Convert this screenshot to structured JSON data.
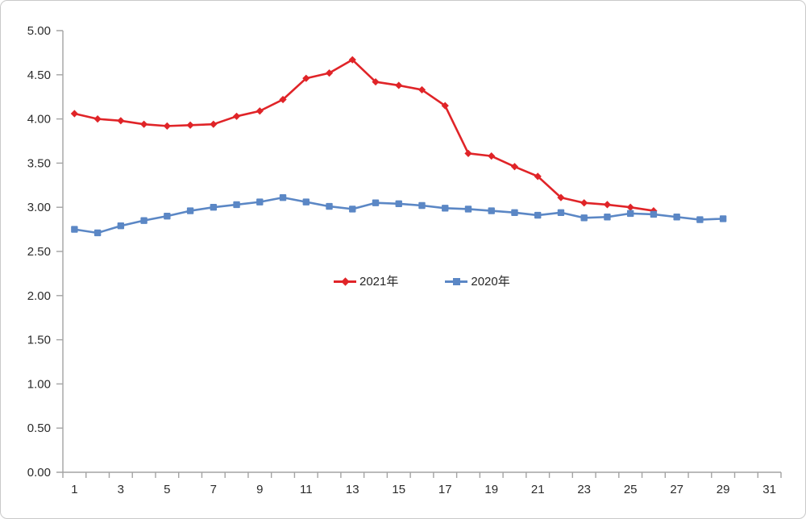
{
  "chart_data": {
    "type": "line",
    "title": "",
    "xlabel": "",
    "ylabel": "",
    "x_start": 1,
    "x_max": 31,
    "x_tick_labels": [
      1,
      3,
      5,
      7,
      9,
      11,
      13,
      15,
      17,
      19,
      21,
      23,
      25,
      27,
      29,
      31
    ],
    "ylim": [
      0,
      5
    ],
    "y_tick_step": 0.5,
    "y_tick_decimals": 2,
    "grid": false,
    "legend_position": "center-inside",
    "series": [
      {
        "name": "2021年",
        "color": "#e02428",
        "marker": "diamond",
        "x": [
          1,
          2,
          3,
          4,
          5,
          6,
          7,
          8,
          9,
          10,
          11,
          12,
          13,
          14,
          15,
          16,
          17,
          18,
          19,
          20,
          21,
          22,
          23,
          24,
          25,
          26
        ],
        "values": [
          4.06,
          4.0,
          3.98,
          3.94,
          3.92,
          3.93,
          3.94,
          4.03,
          4.09,
          4.22,
          4.46,
          4.52,
          4.67,
          4.42,
          4.38,
          4.33,
          4.15,
          3.61,
          3.58,
          3.46,
          3.35,
          3.11,
          3.05,
          3.03,
          3.0,
          2.96
        ]
      },
      {
        "name": "2020年",
        "color": "#5b87c5",
        "marker": "square",
        "x": [
          1,
          2,
          3,
          4,
          5,
          6,
          7,
          8,
          9,
          10,
          11,
          12,
          13,
          14,
          15,
          16,
          17,
          18,
          19,
          20,
          21,
          22,
          23,
          24,
          25,
          26,
          27,
          28,
          29
        ],
        "values": [
          2.75,
          2.71,
          2.79,
          2.85,
          2.9,
          2.96,
          3.0,
          3.03,
          3.06,
          3.11,
          3.06,
          3.01,
          2.98,
          3.05,
          3.04,
          3.02,
          2.99,
          2.98,
          2.96,
          2.94,
          2.91,
          2.94,
          2.88,
          2.89,
          2.93,
          2.92,
          2.89,
          2.86,
          2.87
        ]
      }
    ],
    "axis_color": "#a3a3a3",
    "tick_color": "#a3a3a3",
    "label_color": "#2b2b2b"
  },
  "legend": {
    "items": [
      {
        "label": "2021年"
      },
      {
        "label": "2020年"
      }
    ]
  }
}
